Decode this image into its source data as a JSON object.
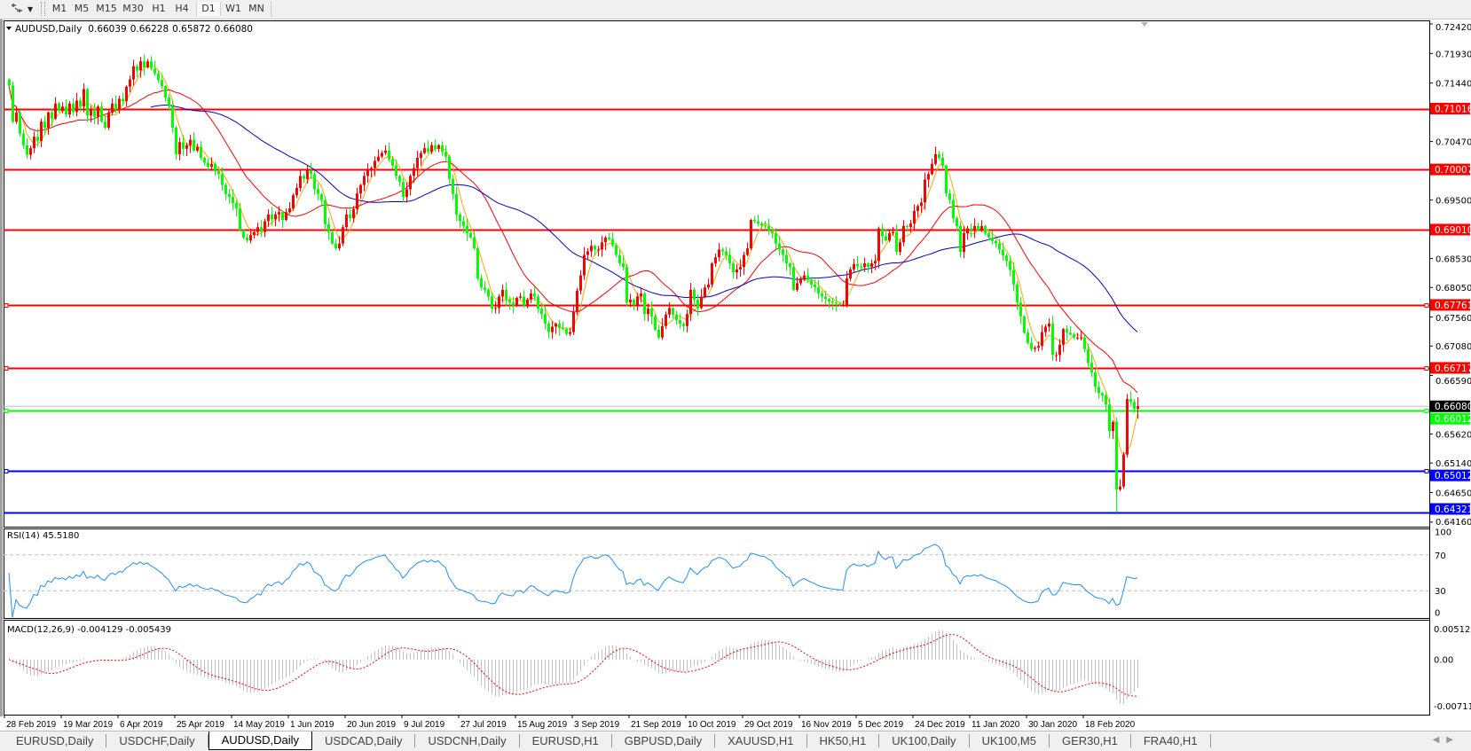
{
  "toolbar": {
    "tools_icon": "line-studies-icon",
    "timeframes": [
      {
        "label": "M1"
      },
      {
        "label": "M5"
      },
      {
        "label": "M15"
      },
      {
        "label": "M30"
      },
      {
        "label": "H1"
      },
      {
        "label": "H4"
      },
      {
        "label": "D1"
      },
      {
        "label": "W1"
      },
      {
        "label": "MN"
      }
    ],
    "active_timeframe": "D1"
  },
  "chart": {
    "symbol": "AUDUSD,Daily",
    "open": "0.66039",
    "high": "0.66228",
    "low": "0.65872",
    "close": "0.66080"
  },
  "price_axis": {
    "ticks": [
      "0.72420",
      "0.71930",
      "0.71440",
      "0.70470",
      "0.69500",
      "0.68530",
      "0.68050",
      "0.67560",
      "0.67080",
      "0.66590",
      "0.65620",
      "0.65140",
      "0.64650",
      "0.64160"
    ]
  },
  "levels": [
    {
      "value": "0.71016",
      "color": "#ff0000",
      "handle": false
    },
    {
      "value": "0.70007",
      "color": "#ff0000",
      "handle": false
    },
    {
      "value": "0.69010",
      "color": "#ff0000",
      "handle": false
    },
    {
      "value": "0.67761",
      "color": "#ff0000",
      "handle": true
    },
    {
      "value": "0.66717",
      "color": "#ff0000",
      "handle": true
    },
    {
      "value": "0.66012",
      "color": "#00ff00",
      "handle": true
    },
    {
      "value": "0.65012",
      "color": "#0000ff",
      "handle": true
    },
    {
      "value": "0.64321",
      "color": "#0000ff",
      "handle": false
    }
  ],
  "current_price": {
    "value": "0.66080",
    "color": "#000000"
  },
  "rsi": {
    "label": "RSI(14) 45.5180",
    "axis": [
      "100",
      "70",
      "30",
      "0"
    ],
    "color": "#1e90ff"
  },
  "macd": {
    "label": "MACD(12,26,9) -0.004129 -0.005439",
    "axis": [
      "0.005121",
      "0.00",
      "-0.007111"
    ],
    "histogram_color": "#c0c0c0",
    "signal_color": "#ff0000"
  },
  "x_axis": {
    "labels": [
      "28 Feb 2019",
      "19 Mar 2019",
      "6 Apr 2019",
      "25 Apr 2019",
      "14 May 2019",
      "1 Jun 2019",
      "20 Jun 2019",
      "9 Jul 2019",
      "27 Jul 2019",
      "15 Aug 2019",
      "3 Sep 2019",
      "21 Sep 2019",
      "10 Oct 2019",
      "29 Oct 2019",
      "16 Nov 2019",
      "5 Dec 2019",
      "24 Dec 2019",
      "11 Jan 2020",
      "30 Jan 2020",
      "18 Feb 2020"
    ]
  },
  "tabs": [
    {
      "label": "EURUSD,Daily"
    },
    {
      "label": "USDCHF,Daily"
    },
    {
      "label": "AUDUSD,Daily",
      "active": true
    },
    {
      "label": "USDCAD,Daily"
    },
    {
      "label": "USDCNH,Daily"
    },
    {
      "label": "EURUSD,H1"
    },
    {
      "label": "GBPUSD,Daily"
    },
    {
      "label": "XAUUSD,H1"
    },
    {
      "label": "HK50,H1"
    },
    {
      "label": "UK100,Daily"
    },
    {
      "label": "UK100,M5"
    },
    {
      "label": "GER30,H1"
    },
    {
      "label": "FRA40,H1"
    }
  ],
  "colors": {
    "bull_candle": "#ff0000",
    "bear_candle": "#00ff00",
    "ma_fast": "#ffa500",
    "ma_mid": "#ff0000",
    "ma_slow": "#0000cd"
  },
  "chart_data": {
    "type": "candlestick",
    "ylim": [
      0.6416,
      0.7242
    ],
    "close": [
      0.714,
      0.708,
      0.7095,
      0.706,
      0.7041,
      0.7025,
      0.7036,
      0.7055,
      0.7048,
      0.708,
      0.707,
      0.7095,
      0.7085,
      0.711,
      0.7098,
      0.7105,
      0.7092,
      0.711,
      0.7096,
      0.7115,
      0.7105,
      0.7134,
      0.709,
      0.71,
      0.7088,
      0.7105,
      0.708,
      0.707,
      0.7095,
      0.711,
      0.71,
      0.7118,
      0.7114,
      0.7138,
      0.715,
      0.7172,
      0.7165,
      0.718,
      0.717,
      0.718,
      0.7168,
      0.716,
      0.7149,
      0.7139,
      0.712,
      0.7105,
      0.707,
      0.7026,
      0.7046,
      0.7035,
      0.7041,
      0.705,
      0.7032,
      0.7038,
      0.702,
      0.7012,
      0.7005,
      0.701,
      0.6998,
      0.6993,
      0.6975,
      0.696,
      0.6955,
      0.6945,
      0.6936,
      0.69,
      0.6888,
      0.6883,
      0.6892,
      0.6897,
      0.6905,
      0.6897,
      0.6915,
      0.6926,
      0.6918,
      0.6926,
      0.693,
      0.6917,
      0.693,
      0.6936,
      0.6958,
      0.697,
      0.699,
      0.6985,
      0.6999,
      0.6993,
      0.6968,
      0.696,
      0.695,
      0.691,
      0.6897,
      0.6878,
      0.687,
      0.6878,
      0.6905,
      0.6926,
      0.692,
      0.6935,
      0.6961,
      0.6975,
      0.699,
      0.7,
      0.7003,
      0.7015,
      0.7022,
      0.7028,
      0.7032,
      0.7018,
      0.7007,
      0.699,
      0.698,
      0.6955,
      0.6968,
      0.699,
      0.7003,
      0.702,
      0.7028,
      0.7036,
      0.703,
      0.7041,
      0.7035,
      0.7041,
      0.703,
      0.7022,
      0.6985,
      0.696,
      0.6926,
      0.6915,
      0.6907,
      0.6895,
      0.6888,
      0.687,
      0.682,
      0.6805,
      0.6801,
      0.679,
      0.677,
      0.6771,
      0.679,
      0.6801,
      0.6785,
      0.678,
      0.6775,
      0.6788,
      0.679,
      0.6775,
      0.6785,
      0.6795,
      0.679,
      0.677,
      0.6761,
      0.6745,
      0.6731,
      0.674,
      0.6745,
      0.6738,
      0.6736,
      0.6728,
      0.6731,
      0.6765,
      0.68,
      0.6825,
      0.6859,
      0.6865,
      0.6874,
      0.6868,
      0.6868,
      0.688,
      0.6888,
      0.6885,
      0.6875,
      0.6859,
      0.6845,
      0.6839,
      0.678,
      0.6785,
      0.6776,
      0.679,
      0.6795,
      0.6761,
      0.677,
      0.6757,
      0.6735,
      0.6722,
      0.6741,
      0.676,
      0.6771,
      0.676,
      0.6751,
      0.6745,
      0.6741,
      0.6761,
      0.6801,
      0.6785,
      0.6771,
      0.679,
      0.6805,
      0.681,
      0.6845,
      0.6855,
      0.6868,
      0.6865,
      0.6859,
      0.6845,
      0.683,
      0.6835,
      0.6839,
      0.6859,
      0.687,
      0.6917,
      0.6915,
      0.6911,
      0.6908,
      0.6907,
      0.69,
      0.6895,
      0.6878,
      0.6868,
      0.6859,
      0.6845,
      0.6839,
      0.6801,
      0.6812,
      0.682,
      0.6825,
      0.6818,
      0.681,
      0.6805,
      0.6795,
      0.679,
      0.6786,
      0.6782,
      0.678,
      0.6778,
      0.6776,
      0.6776,
      0.682,
      0.6835,
      0.6844,
      0.684,
      0.6839,
      0.6845,
      0.6839,
      0.6845,
      0.6849,
      0.6903,
      0.689,
      0.6883,
      0.6895,
      0.6897,
      0.6864,
      0.688,
      0.6907,
      0.6905,
      0.6911,
      0.6932,
      0.694,
      0.6946,
      0.6984,
      0.6993,
      0.701,
      0.7026,
      0.702,
      0.7007,
      0.6961,
      0.695,
      0.692,
      0.6907,
      0.6864,
      0.6895,
      0.6903,
      0.69,
      0.6907,
      0.69,
      0.6907,
      0.6895,
      0.6888,
      0.6882,
      0.6878,
      0.6868,
      0.6858,
      0.6849,
      0.6834,
      0.681,
      0.678,
      0.6757,
      0.673,
      0.6713,
      0.6703,
      0.6705,
      0.6708,
      0.6731,
      0.674,
      0.6745,
      0.6693,
      0.6693,
      0.671,
      0.6736,
      0.673,
      0.6727,
      0.6722,
      0.6722,
      0.6722,
      0.6703,
      0.668,
      0.6664,
      0.664,
      0.663,
      0.6626,
      0.6611,
      0.6567,
      0.6582,
      0.647,
      0.6475,
      0.6528,
      0.662,
      0.6615,
      0.6604,
      0.6608
    ]
  }
}
